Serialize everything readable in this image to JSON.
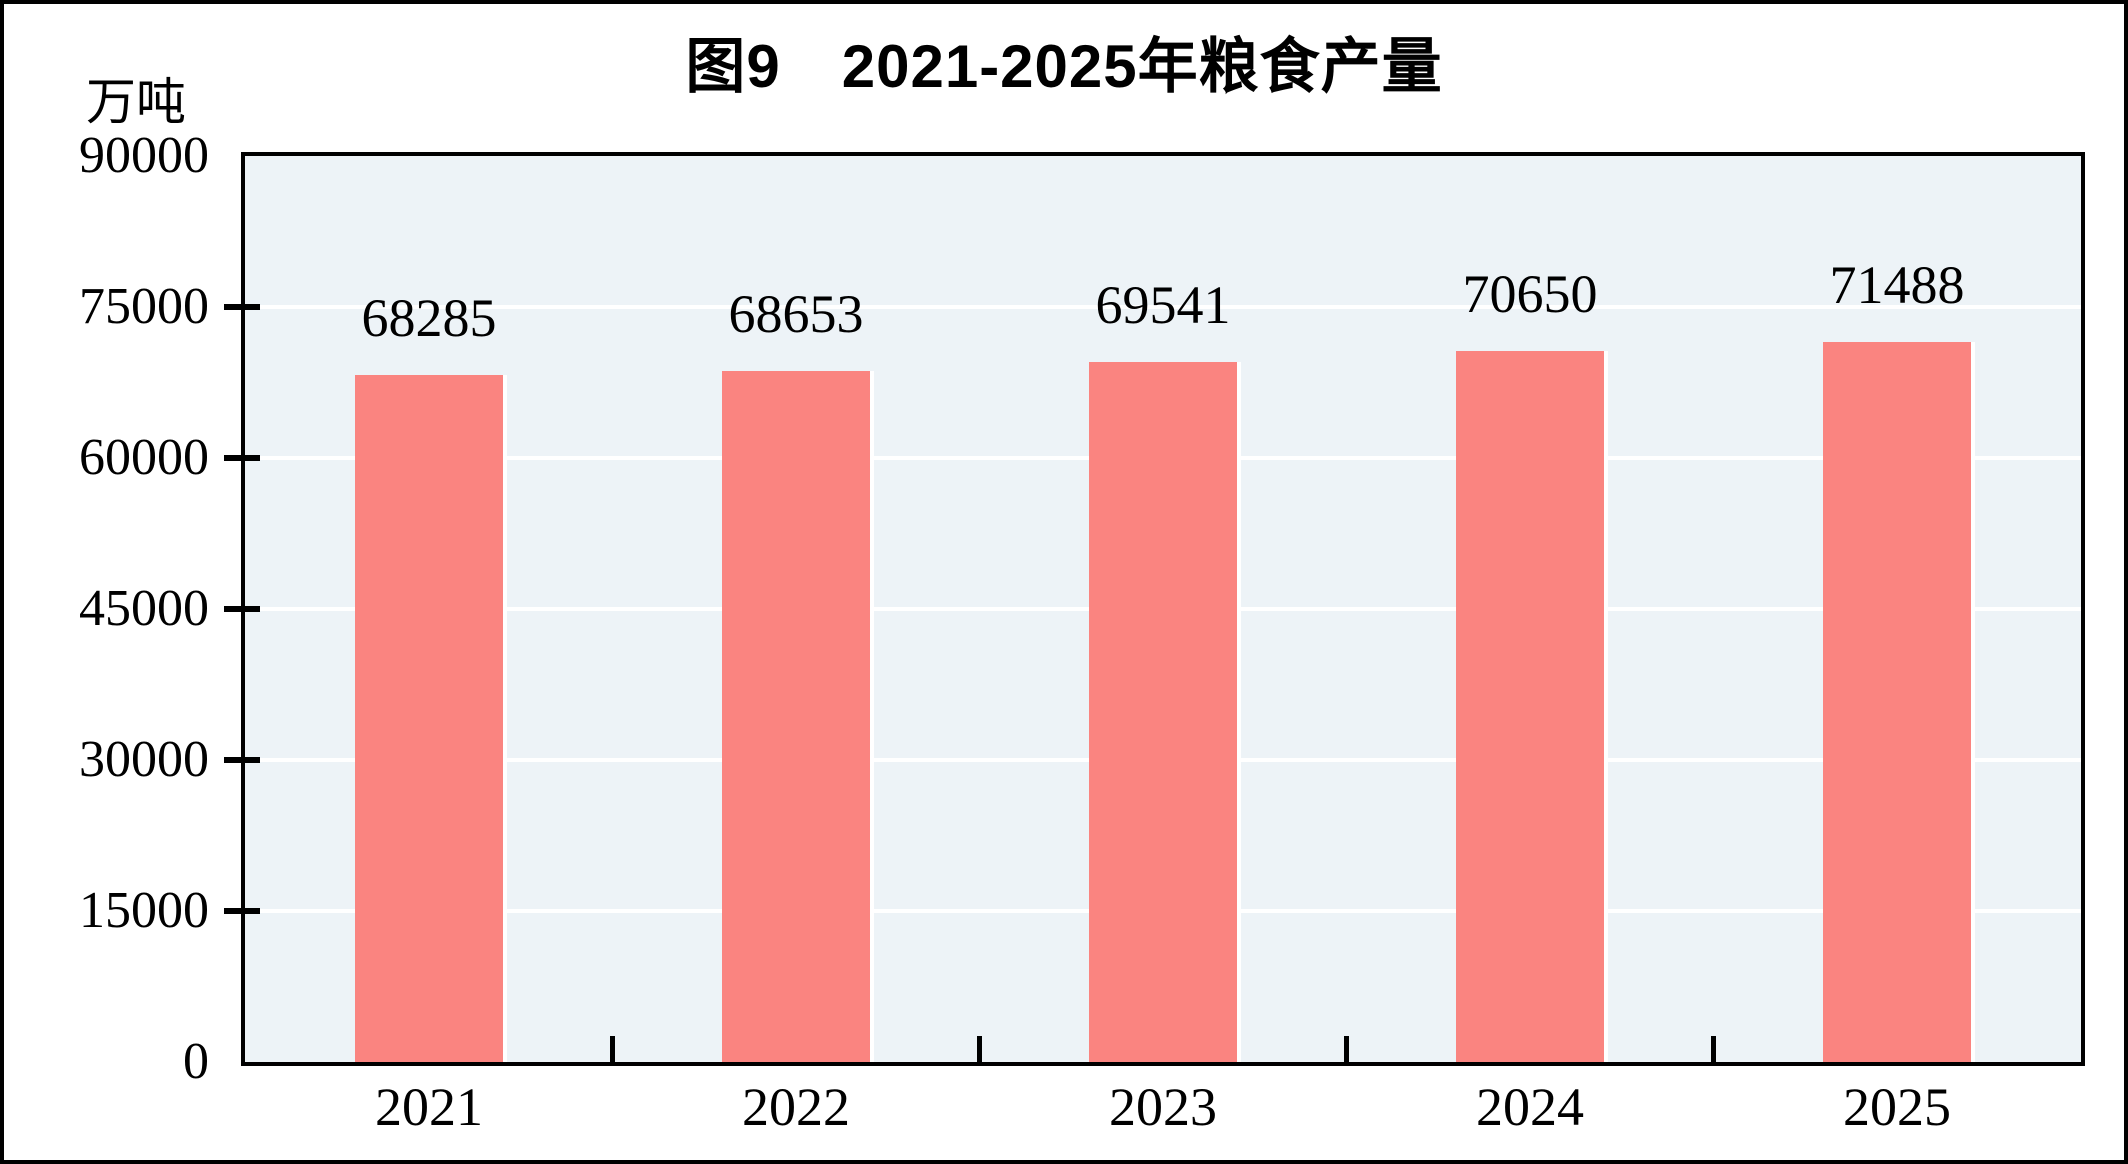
{
  "page": {
    "outer_border_color": "#000000",
    "background": "#FFFFFF"
  },
  "chart": {
    "title": "图9　2021-2025年粮食产量",
    "unit_label": "万吨",
    "colors": {
      "bar": "#FA8480",
      "bar_right_edge": "#FFFFFF",
      "plot_background": "#EDF3F7",
      "gridline": "#FFFFFF",
      "axis": "#000000",
      "text": "#000000"
    }
  },
  "chart_data": {
    "type": "bar",
    "title": "图9　2021-2025年粮食产量",
    "categories": [
      "2021",
      "2022",
      "2023",
      "2024",
      "2025"
    ],
    "values": [
      68285,
      68653,
      69541,
      70650,
      71488
    ],
    "xlabel": "",
    "ylabel": "万吨",
    "ylim": [
      0,
      90000
    ],
    "yticks": [
      0,
      15000,
      30000,
      45000,
      60000,
      75000,
      90000
    ],
    "ytick_step": 15000,
    "grid": "horizontal white major gridlines on light-blue plot background",
    "legend_position": "none",
    "data_labels": true
  }
}
